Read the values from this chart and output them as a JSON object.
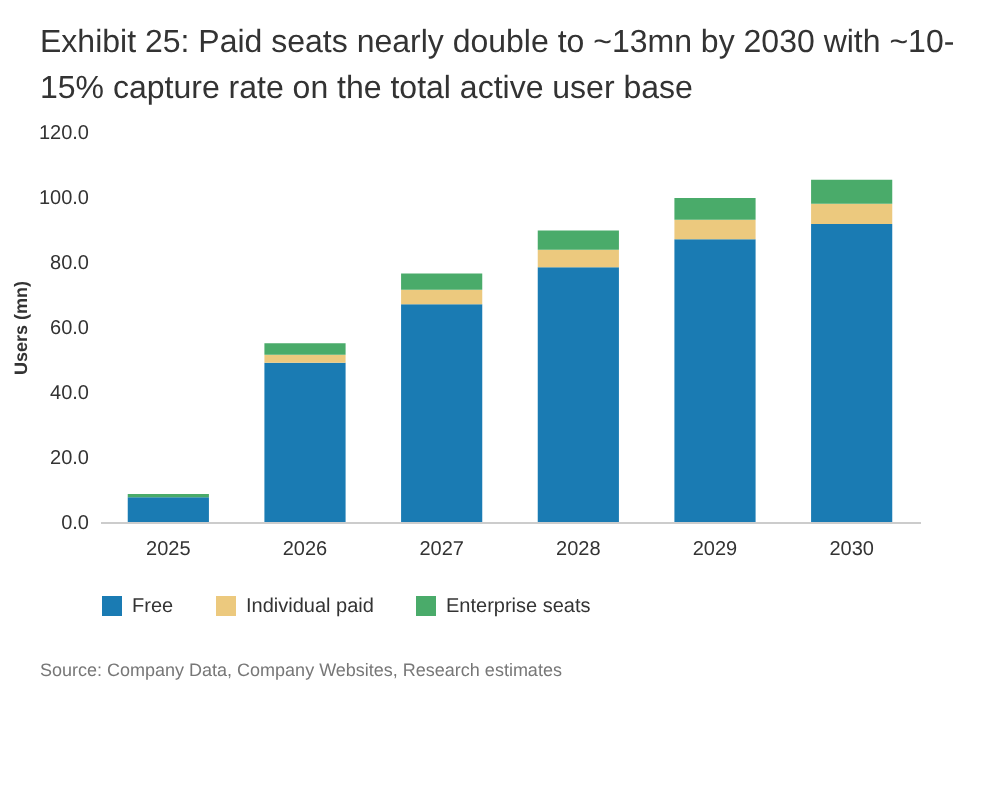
{
  "chart_data": {
    "type": "bar",
    "stacked": true,
    "title": "Exhibit 25: Paid seats nearly double to ~13mn by 2030 with ~10-15% capture rate on the total active user base",
    "ylabel": "Users (mn)",
    "categories": [
      "2025",
      "2026",
      "2027",
      "2028",
      "2029",
      "2030"
    ],
    "series": [
      {
        "name": "Free",
        "color": "#1a7bb3",
        "values": [
          7.6,
          49,
          67,
          78.4,
          87,
          91.7
        ]
      },
      {
        "name": "Individual paid",
        "color": "#ecc97e",
        "values": [
          null,
          2.5,
          4.5,
          5.4,
          6,
          6.2
        ]
      },
      {
        "name": "Enterprise seats",
        "color": "#4aab6a",
        "values": [
          1,
          3.5,
          5,
          5.9,
          6.7,
          7.4
        ]
      }
    ],
    "ylim": [
      0,
      120
    ],
    "yticks": [
      {
        "value": 0,
        "label": "0.0"
      },
      {
        "value": 20,
        "label": "20.0"
      },
      {
        "value": 40,
        "label": "40.0"
      },
      {
        "value": 60,
        "label": "60.0"
      },
      {
        "value": 80,
        "label": "80.0"
      },
      {
        "value": 100,
        "label": "100.0"
      },
      {
        "value": 120,
        "label": "120.0"
      }
    ],
    "legend": "bottom",
    "grid": false,
    "annotations": [
      "Source: Company Data, Company Websites, Research estimates"
    ]
  }
}
